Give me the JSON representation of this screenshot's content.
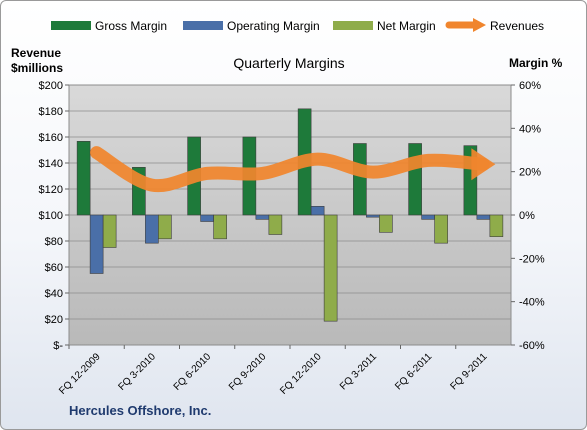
{
  "chart_data": {
    "type": "bar",
    "title": "Quarterly Margins",
    "company": "Hercules Offshore, Inc.",
    "left_axis_title": [
      "Revenue",
      "$millions"
    ],
    "right_axis_title": "Margin %",
    "left_ticks": [
      "$-",
      "$20",
      "$40",
      "$60",
      "$80",
      "$100",
      "$120",
      "$140",
      "$160",
      "$180",
      "$200"
    ],
    "left_ylim": [
      0,
      200
    ],
    "right_ticks": [
      "-60%",
      "-40%",
      "-20%",
      "0%",
      "20%",
      "40%",
      "60%"
    ],
    "right_ylim": [
      -60,
      60
    ],
    "categories": [
      "FQ 12-2009",
      "FQ 3-2010",
      "FQ 6-2010",
      "FQ 9-2010",
      "FQ 12-2010",
      "FQ 3-2011",
      "FQ 6-2011",
      "FQ 9-2011"
    ],
    "legend_position": "top",
    "grid": true,
    "series": [
      {
        "name": "Gross Margin",
        "axis": "right",
        "kind": "bar",
        "color": "#1e7a3a",
        "values": [
          34,
          22,
          36,
          36,
          49,
          33,
          33,
          32
        ]
      },
      {
        "name": "Operating Margin",
        "axis": "right",
        "kind": "bar",
        "color": "#4a6fa8",
        "values": [
          -27,
          -13,
          -3,
          -2,
          4,
          -1,
          -2,
          -2
        ]
      },
      {
        "name": "Net Margin",
        "axis": "right",
        "kind": "bar",
        "color": "#8fac4a",
        "values": [
          -15,
          -11,
          -11,
          -9,
          -49,
          -8,
          -13,
          -10
        ]
      },
      {
        "name": "Revenues",
        "axis": "left",
        "kind": "line",
        "color": "#f0852d",
        "values": [
          148,
          123,
          132,
          132,
          143,
          133,
          142,
          139
        ]
      }
    ]
  }
}
